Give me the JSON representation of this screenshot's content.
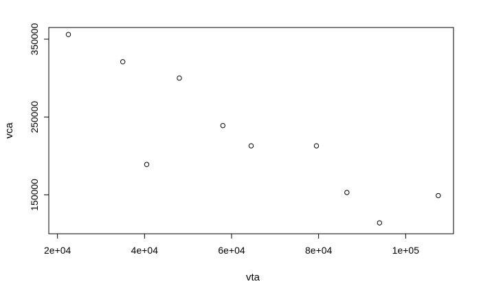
{
  "chart_data": {
    "type": "scatter",
    "title": "",
    "xlabel": "vta",
    "ylabel": "vca",
    "xlim": [
      18000,
      111000
    ],
    "ylim": [
      100000,
      365000
    ],
    "grid": false,
    "x_ticks": [
      {
        "value": 20000,
        "label": "2e+04"
      },
      {
        "value": 40000,
        "label": "4e+04"
      },
      {
        "value": 60000,
        "label": "6e+04"
      },
      {
        "value": 80000,
        "label": "8e+04"
      },
      {
        "value": 100000,
        "label": "1e+05"
      }
    ],
    "y_ticks": [
      {
        "value": 150000,
        "label": "150000"
      },
      {
        "value": 250000,
        "label": "250000"
      },
      {
        "value": 350000,
        "label": "350000"
      }
    ],
    "points": [
      {
        "x": 22500,
        "y": 356000
      },
      {
        "x": 35000,
        "y": 321000
      },
      {
        "x": 40500,
        "y": 189000
      },
      {
        "x": 48000,
        "y": 300000
      },
      {
        "x": 58000,
        "y": 239000
      },
      {
        "x": 64500,
        "y": 213000
      },
      {
        "x": 79500,
        "y": 213000
      },
      {
        "x": 86500,
        "y": 153000
      },
      {
        "x": 94000,
        "y": 114000
      },
      {
        "x": 107500,
        "y": 149000
      }
    ]
  }
}
